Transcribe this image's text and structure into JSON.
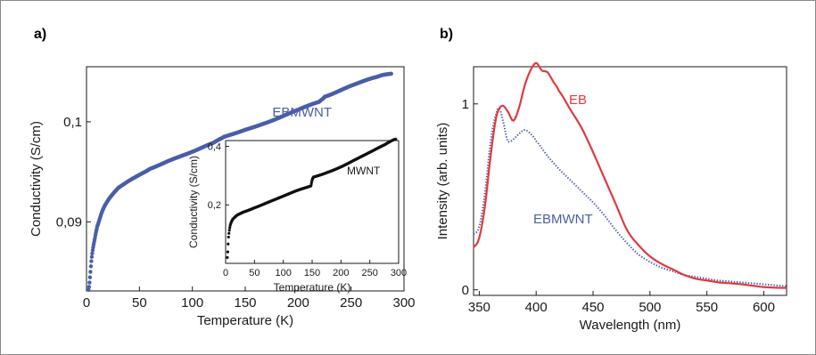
{
  "figure": {
    "panel_a_label": "a)",
    "panel_b_label": "b)"
  },
  "chart_data": [
    {
      "type": "scatter",
      "panel": "a",
      "xlabel": "Temperature (K)",
      "ylabel": "Conductivity (S/cm)",
      "xlim": [
        0,
        300
      ],
      "ylim": [
        0.0831,
        0.1055
      ],
      "xticks": [
        0,
        50,
        100,
        150,
        200,
        250,
        300
      ],
      "xtick_labels": [
        "0",
        "50",
        "100",
        "150",
        "200",
        "250",
        "300"
      ],
      "yticks": [
        0.09,
        0.1
      ],
      "ytick_labels": [
        "0,09",
        "0,1"
      ],
      "series": [
        {
          "name": "EBMWNT",
          "color": "#4a5fa8",
          "x": [
            2,
            5,
            8,
            10,
            15,
            20,
            25,
            30,
            40,
            50,
            60,
            80,
            100,
            120,
            130,
            150,
            175,
            200,
            220,
            225,
            250,
            275,
            288
          ],
          "y": [
            0.0832,
            0.0865,
            0.0884,
            0.0895,
            0.0911,
            0.0921,
            0.0928,
            0.0934,
            0.0941,
            0.0947,
            0.0953,
            0.0962,
            0.097,
            0.0979,
            0.0985,
            0.0992,
            0.1001,
            0.1012,
            0.102,
            0.1025,
            0.1036,
            0.1045,
            0.1048
          ]
        }
      ],
      "inset": {
        "type": "scatter",
        "xlabel": "Temperature (K)",
        "ylabel": "Conductivity (S/cm)",
        "xlim": [
          0,
          300
        ],
        "ylim": [
          0,
          0.42
        ],
        "xticks": [
          0,
          50,
          100,
          150,
          200,
          250,
          300
        ],
        "xtick_labels": [
          "0",
          "50",
          "100",
          "150",
          "200",
          "250",
          "300"
        ],
        "yticks": [
          0.2,
          0.4
        ],
        "ytick_labels": [
          "0,2",
          "0,4"
        ],
        "series": [
          {
            "name": "MWNT",
            "color": "#111111",
            "x": [
              3,
              5,
              8,
              12,
              20,
              30,
              50,
              75,
              100,
              125,
              148,
              150,
              152,
              175,
              200,
              225,
              250,
              275,
              295
            ],
            "y": [
              0.02,
              0.09,
              0.13,
              0.15,
              0.165,
              0.175,
              0.19,
              0.21,
              0.23,
              0.25,
              0.265,
              0.285,
              0.295,
              0.31,
              0.33,
              0.355,
              0.38,
              0.405,
              0.425
            ]
          }
        ]
      }
    },
    {
      "type": "line",
      "panel": "b",
      "xlabel": "Wavelength (nm)",
      "ylabel": "Intensity (arb. units)",
      "xlim": [
        345,
        620
      ],
      "ylim": [
        -0.03,
        1.2
      ],
      "xticks": [
        350,
        400,
        450,
        500,
        550,
        600
      ],
      "xtick_labels": [
        "350",
        "400",
        "450",
        "500",
        "550",
        "600"
      ],
      "yticks": [
        0,
        1
      ],
      "ytick_labels": [
        "0",
        "1"
      ],
      "series": [
        {
          "name": "EB",
          "color": "#e03a3e",
          "style": "solid",
          "x": [
            345,
            350,
            355,
            360,
            365,
            370,
            375,
            380,
            385,
            390,
            395,
            400,
            405,
            410,
            415,
            420,
            430,
            440,
            450,
            460,
            470,
            480,
            490,
            500,
            510,
            520,
            530,
            540,
            550,
            560,
            580,
            600,
            620
          ],
          "y": [
            0.23,
            0.28,
            0.45,
            0.72,
            0.93,
            0.99,
            0.96,
            0.91,
            0.98,
            1.1,
            1.18,
            1.22,
            1.18,
            1.17,
            1.12,
            1.07,
            0.97,
            0.87,
            0.74,
            0.6,
            0.46,
            0.32,
            0.24,
            0.18,
            0.14,
            0.11,
            0.08,
            0.06,
            0.05,
            0.04,
            0.03,
            0.015,
            0.01
          ]
        },
        {
          "name": "EBMWNT",
          "color": "#4a5fa8",
          "style": "dotted",
          "x": [
            345,
            350,
            355,
            360,
            365,
            368,
            372,
            375,
            380,
            385,
            390,
            395,
            400,
            410,
            420,
            430,
            440,
            450,
            460,
            470,
            480,
            490,
            500,
            510,
            520,
            530,
            540,
            550,
            560,
            580,
            600,
            620
          ],
          "y": [
            0.3,
            0.34,
            0.52,
            0.8,
            0.95,
            0.97,
            0.88,
            0.8,
            0.81,
            0.84,
            0.86,
            0.84,
            0.8,
            0.72,
            0.65,
            0.59,
            0.53,
            0.47,
            0.4,
            0.32,
            0.25,
            0.19,
            0.15,
            0.12,
            0.1,
            0.08,
            0.07,
            0.06,
            0.05,
            0.04,
            0.03,
            0.02
          ]
        }
      ]
    }
  ]
}
